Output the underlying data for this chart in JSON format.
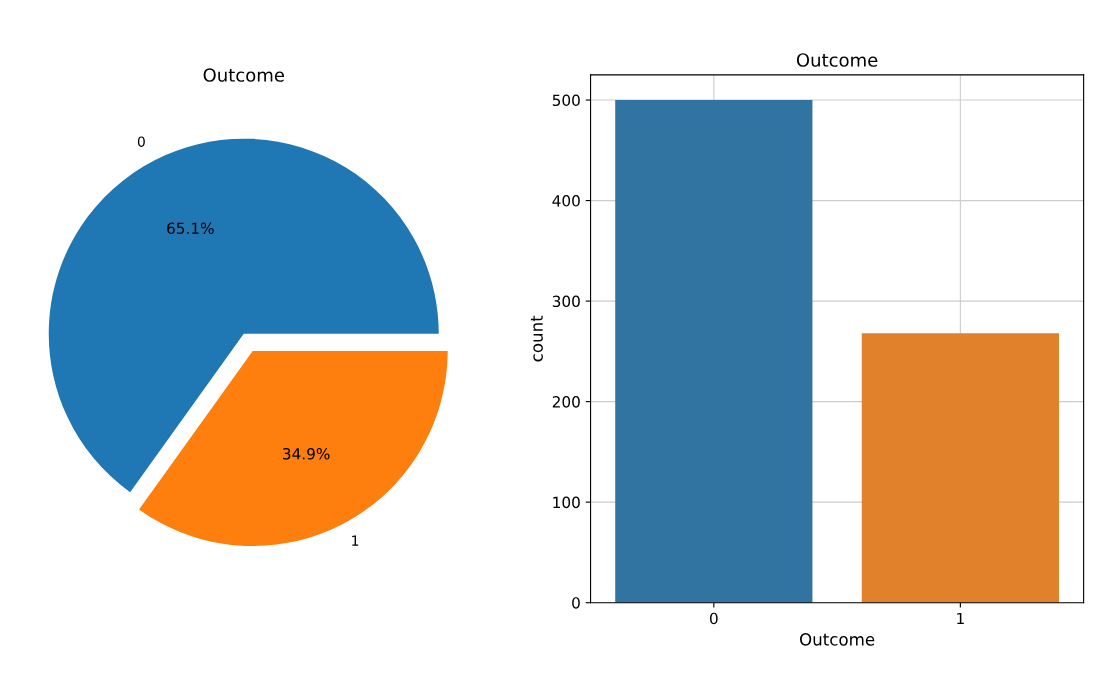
{
  "chart_data": [
    {
      "type": "pie",
      "title": "Outcome",
      "categories": [
        "0",
        "1"
      ],
      "values": [
        65.1,
        34.9
      ],
      "colors": [
        "#1f77b4",
        "#ff7f0e"
      ],
      "value_labels": [
        "65.1%",
        "34.9%"
      ]
    },
    {
      "type": "bar",
      "title": "Outcome",
      "xlabel": "Outcome",
      "ylabel": "count",
      "categories": [
        "0",
        "1"
      ],
      "values": [
        500,
        268
      ],
      "colors": [
        "#3274a1",
        "#e1812c"
      ],
      "ylim": [
        0,
        525
      ],
      "yticks": [
        0,
        100,
        200,
        300,
        400,
        500
      ],
      "grid": true
    }
  ]
}
